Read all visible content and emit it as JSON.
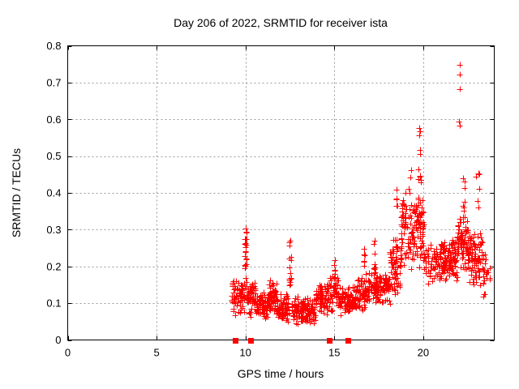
{
  "window": {
    "background": "#ffffff"
  },
  "chart_data": {
    "type": "scatter",
    "title": "Day 206 of 2022, SRMTID for receiver ista",
    "xlabel": "GPS time / hours",
    "ylabel": "SRMTID / TECUs",
    "xlim": [
      0,
      24
    ],
    "ylim": [
      0,
      0.8
    ],
    "xticks": [
      0,
      5,
      10,
      15,
      20
    ],
    "xtick_labels": [
      "0",
      "5",
      "10",
      "15",
      "20"
    ],
    "yticks": [
      0,
      0.1,
      0.2,
      0.3,
      0.4,
      0.5,
      0.6,
      0.7,
      0.8
    ],
    "ytick_labels": [
      "0",
      "0.1",
      "0.2",
      "0.3",
      "0.4",
      "0.5",
      "0.6",
      "0.7",
      "0.8"
    ],
    "grid": true,
    "grid_style": "dashed",
    "legend": "none",
    "marker": "plus",
    "marker_color": "#ff0000",
    "grid_color": "#9b9b9b",
    "axis_color": "#000000",
    "data_time_range_hours": [
      9.25,
      23.75
    ],
    "baseline_square_marker_x": [
      9.43,
      10.29,
      14.72,
      15.77
    ],
    "outlier_points": [
      [
        19.78,
        0.577
      ],
      [
        19.84,
        0.568
      ],
      [
        19.8,
        0.556
      ],
      [
        19.83,
        0.516
      ],
      [
        22.05,
        0.748
      ],
      [
        22.07,
        0.722
      ],
      [
        22.06,
        0.683
      ],
      [
        22.02,
        0.594
      ],
      [
        22.05,
        0.583
      ],
      [
        19.32,
        0.462
      ],
      [
        19.26,
        0.442
      ],
      [
        10.02,
        0.303
      ],
      [
        12.52,
        0.27
      ]
    ],
    "spike_chains": {
      "format": "[x_center, x_jitter, n_points, y_min, y_max]",
      "list": [
        [
          10.02,
          0.06,
          22,
          0.14,
          0.305
        ],
        [
          12.52,
          0.05,
          14,
          0.12,
          0.265
        ],
        [
          15.0,
          0.05,
          10,
          0.13,
          0.22
        ],
        [
          16.7,
          0.05,
          9,
          0.15,
          0.26
        ],
        [
          17.25,
          0.05,
          8,
          0.16,
          0.275
        ],
        [
          18.5,
          0.06,
          10,
          0.2,
          0.415
        ],
        [
          19.8,
          0.08,
          14,
          0.3,
          0.53
        ],
        [
          22.28,
          0.06,
          8,
          0.3,
          0.47
        ],
        [
          23.1,
          0.12,
          7,
          0.33,
          0.46
        ]
      ]
    },
    "scatter_bands": {
      "format": "[x_start, x_end, n_points, y_mean, y_spread]",
      "list": [
        [
          9.25,
          9.95,
          65,
          0.115,
          0.055
        ],
        [
          10.05,
          10.6,
          55,
          0.115,
          0.055
        ],
        [
          10.6,
          11.35,
          85,
          0.09,
          0.045
        ],
        [
          11.35,
          11.75,
          45,
          0.115,
          0.05
        ],
        [
          11.75,
          12.45,
          80,
          0.085,
          0.042
        ],
        [
          12.6,
          13.35,
          80,
          0.08,
          0.042
        ],
        [
          13.35,
          13.95,
          65,
          0.075,
          0.04
        ],
        [
          13.95,
          14.65,
          70,
          0.11,
          0.05
        ],
        [
          14.65,
          15.25,
          50,
          0.13,
          0.055
        ],
        [
          15.25,
          16.25,
          95,
          0.105,
          0.045
        ],
        [
          16.25,
          16.95,
          65,
          0.13,
          0.05
        ],
        [
          16.95,
          17.45,
          50,
          0.14,
          0.05
        ],
        [
          17.45,
          18.15,
          70,
          0.14,
          0.048
        ],
        [
          18.15,
          18.75,
          60,
          0.2,
          0.085
        ],
        [
          18.75,
          19.55,
          85,
          0.3,
          0.12
        ],
        [
          19.6,
          20.05,
          55,
          0.3,
          0.11
        ],
        [
          20.05,
          20.95,
          60,
          0.2,
          0.07
        ],
        [
          20.95,
          21.95,
          115,
          0.22,
          0.068
        ],
        [
          21.95,
          22.5,
          65,
          0.27,
          0.09
        ],
        [
          22.5,
          23.35,
          95,
          0.22,
          0.085
        ],
        [
          23.35,
          23.75,
          25,
          0.17,
          0.07
        ]
      ]
    },
    "y_clamp": [
      0.025,
      0.79
    ],
    "random_seed": 20220206
  }
}
